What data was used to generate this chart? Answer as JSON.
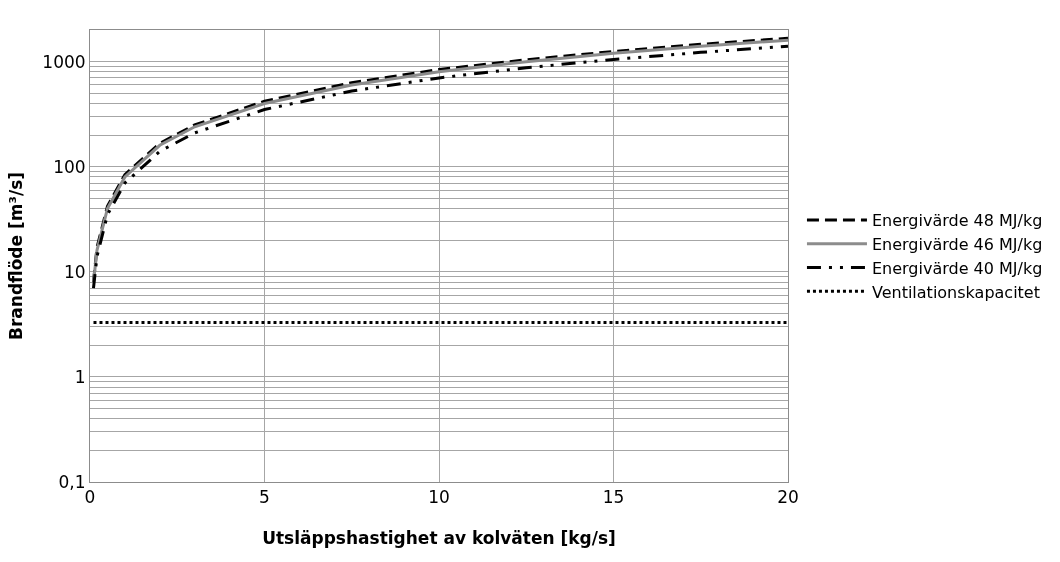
{
  "chart_data": {
    "type": "line",
    "xlabel": "Utsläppshastighet av kolväten [kg/s]",
    "ylabel": "Brandflöde [m³/s]",
    "x": [
      0.1,
      0.2,
      0.5,
      1,
      2,
      3,
      5,
      7.5,
      10,
      12.5,
      15,
      17.5,
      20
    ],
    "series": [
      {
        "name": "Energivärde 48 MJ/kg",
        "color": "#000000",
        "line_style": "dashed",
        "values": [
          8,
          17,
          42,
          84,
          167,
          250,
          420,
          630,
          840,
          1040,
          1250,
          1460,
          1670
        ]
      },
      {
        "name": "Energivärde 46 MJ/kg",
        "color": "#8c8c8c",
        "line_style": "solid",
        "values": [
          8,
          16,
          40,
          80,
          160,
          240,
          400,
          600,
          800,
          1000,
          1200,
          1400,
          1600
        ]
      },
      {
        "name": "Energivärde 40 MJ/kg",
        "color": "#000000",
        "line_style": "dashdot",
        "values": [
          7,
          14,
          35,
          70,
          140,
          210,
          350,
          525,
          700,
          875,
          1050,
          1225,
          1400
        ]
      },
      {
        "name": "Ventilationskapacitet",
        "color": "#000000",
        "line_style": "dotted",
        "x": [
          0.1,
          20
        ],
        "values": [
          3.3,
          3.3
        ]
      }
    ],
    "xlim": [
      0,
      20
    ],
    "xticks": [
      0,
      5,
      10,
      15,
      20
    ],
    "ylim": [
      0.1,
      2000
    ],
    "yticks": [
      {
        "value": 0.1,
        "label": "0,1"
      },
      {
        "value": 0.2,
        "label": null
      },
      {
        "value": 0.3,
        "label": null
      },
      {
        "value": 0.4,
        "label": null
      },
      {
        "value": 0.5,
        "label": null
      },
      {
        "value": 0.6,
        "label": null
      },
      {
        "value": 0.7,
        "label": null
      },
      {
        "value": 0.8,
        "label": null
      },
      {
        "value": 0.9,
        "label": null
      },
      1,
      {
        "value": 2,
        "label": null
      },
      {
        "value": 3,
        "label": null
      },
      {
        "value": 4,
        "label": null
      },
      {
        "value": 5,
        "label": null
      },
      {
        "value": 6,
        "label": null
      },
      {
        "value": 7,
        "label": null
      },
      {
        "value": 8,
        "label": null
      },
      {
        "value": 9,
        "label": null
      },
      10,
      {
        "value": 20,
        "label": null
      },
      {
        "value": 30,
        "label": null
      },
      {
        "value": 40,
        "label": null
      },
      {
        "value": 50,
        "label": null
      },
      {
        "value": 60,
        "label": null
      },
      {
        "value": 70,
        "label": null
      },
      {
        "value": 80,
        "label": null
      },
      {
        "value": 90,
        "label": null
      },
      100,
      {
        "value": 200,
        "label": null
      },
      {
        "value": 300,
        "label": null
      },
      {
        "value": 400,
        "label": null
      },
      {
        "value": 500,
        "label": null
      },
      {
        "value": 600,
        "label": null
      },
      {
        "value": 700,
        "label": null
      },
      {
        "value": 800,
        "label": null
      },
      {
        "value": 900,
        "label": null
      },
      1000,
      {
        "value": 2000,
        "label": null
      }
    ],
    "log": "y",
    "grid": true,
    "legend": "right",
    "marker": "none"
  }
}
